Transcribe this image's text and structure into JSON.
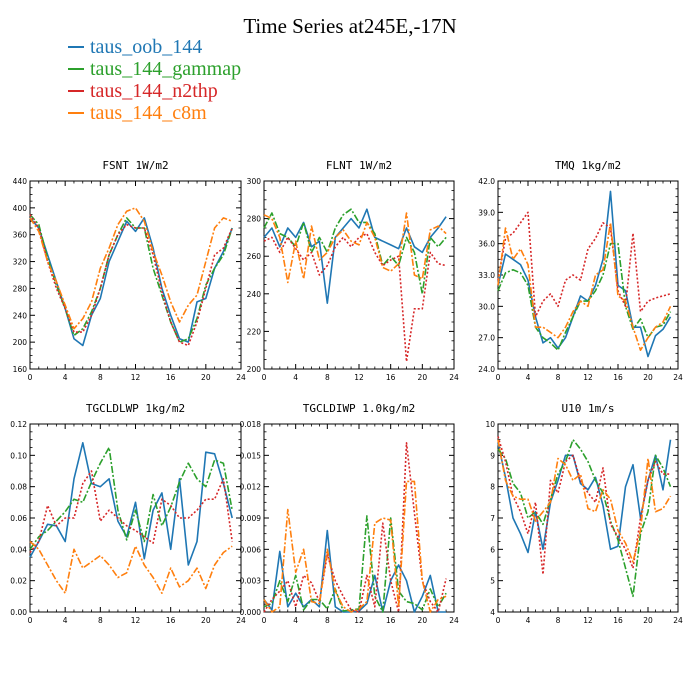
{
  "figure": {
    "title": "Time Series at245E,-17N"
  },
  "legend": [
    {
      "label": "taus_oob_144",
      "color": "#1f77b4"
    },
    {
      "label": "taus_144_gammap",
      "color": "#2ca02c"
    },
    {
      "label": "taus_144_n2thp",
      "color": "#d62728"
    },
    {
      "label": "taus_144_c8m",
      "color": "#ff7f0e"
    }
  ],
  "chart_data": [
    {
      "type": "line",
      "title": "FSNT  1W/m2",
      "xlim": [
        0,
        24
      ],
      "xticks": [
        "0",
        "4",
        "8",
        "12",
        "16",
        "20",
        "24"
      ],
      "ylim": [
        160,
        440
      ],
      "yticks": [
        "160",
        "200",
        "240",
        "280",
        "320",
        "360",
        "400",
        "440"
      ],
      "x": [
        0,
        1,
        2,
        3,
        4,
        5,
        6,
        7,
        8,
        9,
        10,
        11,
        12,
        13,
        14,
        15,
        16,
        17,
        18,
        19,
        20,
        21,
        22,
        23
      ],
      "series": [
        {
          "name": "taus_oob_144",
          "color": "#1f77b4",
          "values": [
            385,
            370,
            330,
            290,
            250,
            205,
            195,
            240,
            265,
            320,
            350,
            380,
            365,
            385,
            340,
            280,
            240,
            205,
            200,
            260,
            265,
            310,
            335,
            370
          ]
        },
        {
          "name": "taus_144_gammap",
          "color": "#2ca02c",
          "values": [
            390,
            375,
            325,
            285,
            250,
            210,
            220,
            245,
            280,
            330,
            360,
            385,
            370,
            370,
            310,
            270,
            230,
            200,
            205,
            235,
            285,
            310,
            330,
            370
          ]
        },
        {
          "name": "taus_144_n2thp",
          "color": "#d62728",
          "values": [
            390,
            370,
            320,
            280,
            250,
            215,
            215,
            240,
            280,
            330,
            360,
            375,
            370,
            370,
            330,
            275,
            230,
            200,
            195,
            230,
            280,
            330,
            340,
            370
          ]
        },
        {
          "name": "taus_144_c8m",
          "color": "#ff7f0e",
          "values": [
            385,
            365,
            320,
            290,
            255,
            220,
            235,
            260,
            310,
            340,
            375,
            395,
            400,
            380,
            335,
            300,
            260,
            230,
            255,
            270,
            320,
            370,
            385,
            380
          ]
        }
      ]
    },
    {
      "type": "line",
      "title": "FLNT  1W/m2",
      "xlim": [
        0,
        24
      ],
      "xticks": [
        "0",
        "4",
        "8",
        "12",
        "16",
        "20",
        "24"
      ],
      "ylim": [
        200,
        300
      ],
      "yticks": [
        "200",
        "220",
        "240",
        "260",
        "280",
        "300"
      ],
      "x": [
        0,
        1,
        2,
        3,
        4,
        5,
        6,
        7,
        8,
        9,
        10,
        11,
        12,
        13,
        14,
        15,
        16,
        17,
        18,
        19,
        20,
        21,
        22,
        23
      ],
      "series": [
        {
          "name": "taus_oob_144",
          "color": "#1f77b4",
          "values": [
            270,
            275,
            265,
            275,
            270,
            278,
            265,
            268,
            235,
            270,
            275,
            280,
            275,
            285,
            270,
            268,
            266,
            264,
            275,
            265,
            262,
            270,
            275,
            281
          ]
        },
        {
          "name": "taus_144_gammap",
          "color": "#2ca02c",
          "values": [
            275,
            283,
            272,
            270,
            265,
            278,
            262,
            270,
            262,
            275,
            282,
            285,
            278,
            278,
            272,
            255,
            260,
            255,
            270,
            262,
            240,
            270,
            265,
            270
          ]
        },
        {
          "name": "taus_144_n2thp",
          "color": "#d62728",
          "values": [
            268,
            270,
            262,
            270,
            264,
            258,
            262,
            250,
            255,
            265,
            270,
            265,
            270,
            272,
            262,
            255,
            258,
            260,
            204,
            232,
            232,
            262,
            256,
            255
          ]
        },
        {
          "name": "taus_144_c8m",
          "color": "#ff7f0e",
          "values": [
            282,
            280,
            270,
            246,
            268,
            248,
            276,
            258,
            262,
            270,
            274,
            268,
            266,
            278,
            270,
            254,
            252,
            256,
            283,
            250,
            248,
            274,
            276,
            272
          ]
        }
      ]
    },
    {
      "type": "line",
      "title": "TMQ  1kg/m2",
      "xlim": [
        0,
        24
      ],
      "xticks": [
        "0",
        "4",
        "8",
        "12",
        "16",
        "20",
        "24"
      ],
      "ylim": [
        24,
        42
      ],
      "yticks": [
        "24.0",
        "27.0",
        "30.0",
        "33.0",
        "36.0",
        "39.0",
        "42.0"
      ],
      "x": [
        0,
        1,
        2,
        3,
        4,
        5,
        6,
        7,
        8,
        9,
        10,
        11,
        12,
        13,
        14,
        15,
        16,
        17,
        18,
        19,
        20,
        21,
        22,
        23
      ],
      "series": [
        {
          "name": "taus_oob_144",
          "color": "#1f77b4",
          "values": [
            32.0,
            35.0,
            34.5,
            34.0,
            32.5,
            29.0,
            26.5,
            27.0,
            26.0,
            27.0,
            29.0,
            31.0,
            30.5,
            32.0,
            34.5,
            41.0,
            32.0,
            31.5,
            28.0,
            28.0,
            25.2,
            27.2,
            27.8,
            29.0
          ]
        },
        {
          "name": "taus_144_gammap",
          "color": "#2ca02c",
          "values": [
            31.5,
            33.2,
            33.5,
            33.2,
            32.0,
            28.0,
            27.0,
            26.5,
            25.8,
            27.5,
            29.0,
            30.5,
            30.5,
            31.5,
            33.0,
            36.0,
            36.0,
            30.0,
            27.8,
            28.8,
            27.0,
            28.0,
            28.2,
            29.5
          ]
        },
        {
          "name": "taus_144_n2thp",
          "color": "#d62728",
          "values": [
            32.5,
            36.5,
            37.0,
            38.0,
            39.0,
            29.0,
            30.5,
            31.2,
            30.0,
            32.5,
            33.0,
            32.5,
            35.5,
            36.5,
            38.0,
            37.5,
            31.5,
            30.0,
            37.0,
            29.5,
            30.5,
            30.8,
            31.0,
            31.2
          ]
        },
        {
          "name": "taus_144_c8m",
          "color": "#ff7f0e",
          "values": [
            32.0,
            37.5,
            34.5,
            35.5,
            34.0,
            28.0,
            28.0,
            27.5,
            27.0,
            28.0,
            29.5,
            30.5,
            30.0,
            33.0,
            33.5,
            38.0,
            31.0,
            30.5,
            28.0,
            25.8,
            27.0,
            28.0,
            28.5,
            30.0
          ]
        }
      ]
    },
    {
      "type": "line",
      "title": "TGCLDLWP  1kg/m2",
      "xlim": [
        0,
        24
      ],
      "xticks": [
        "0",
        "4",
        "8",
        "12",
        "16",
        "20",
        "24"
      ],
      "ylim": [
        0,
        0.12
      ],
      "yticks": [
        "0.00",
        "0.02",
        "0.04",
        "0.06",
        "0.08",
        "0.10",
        "0.12"
      ],
      "x": [
        0,
        1,
        2,
        3,
        4,
        5,
        6,
        7,
        8,
        9,
        10,
        11,
        12,
        13,
        14,
        15,
        16,
        17,
        18,
        19,
        20,
        21,
        22,
        23
      ],
      "series": [
        {
          "name": "taus_oob_144",
          "color": "#1f77b4",
          "values": [
            0.035,
            0.045,
            0.056,
            0.055,
            0.045,
            0.085,
            0.108,
            0.082,
            0.08,
            0.085,
            0.058,
            0.048,
            0.07,
            0.034,
            0.065,
            0.076,
            0.04,
            0.085,
            0.03,
            0.045,
            0.102,
            0.101,
            0.082,
            0.06
          ]
        },
        {
          "name": "taus_144_gammap",
          "color": "#2ca02c",
          "values": [
            0.04,
            0.048,
            0.052,
            0.058,
            0.064,
            0.072,
            0.07,
            0.083,
            0.095,
            0.105,
            0.065,
            0.046,
            0.065,
            0.045,
            0.075,
            0.055,
            0.067,
            0.083,
            0.095,
            0.085,
            0.08,
            0.097,
            0.095,
            0.065
          ]
        },
        {
          "name": "taus_144_n2thp",
          "color": "#d62728",
          "values": [
            0.038,
            0.045,
            0.068,
            0.055,
            0.06,
            0.06,
            0.082,
            0.09,
            0.058,
            0.065,
            0.06,
            0.055,
            0.052,
            0.048,
            0.044,
            0.072,
            0.068,
            0.06,
            0.06,
            0.065,
            0.072,
            0.072,
            0.085,
            0.045
          ]
        },
        {
          "name": "taus_144_c8m",
          "color": "#ff7f0e",
          "values": [
            0.045,
            0.04,
            0.03,
            0.02,
            0.012,
            0.04,
            0.028,
            0.032,
            0.036,
            0.03,
            0.022,
            0.025,
            0.042,
            0.03,
            0.022,
            0.012,
            0.028,
            0.016,
            0.02,
            0.028,
            0.015,
            0.03,
            0.038,
            0.042
          ]
        }
      ]
    },
    {
      "type": "line",
      "title": "TGCLDIWP  1.0kg/m2",
      "xlim": [
        0,
        24
      ],
      "xticks": [
        "0",
        "4",
        "8",
        "12",
        "16",
        "20",
        "24"
      ],
      "ylim": [
        0,
        0.018
      ],
      "yticks": [
        "0.000",
        "0.003",
        "0.006",
        "0.009",
        "0.012",
        "0.015",
        "0.018"
      ],
      "x": [
        0,
        1,
        2,
        3,
        4,
        5,
        6,
        7,
        8,
        9,
        10,
        11,
        12,
        13,
        14,
        15,
        16,
        17,
        18,
        19,
        20,
        21,
        22,
        23
      ],
      "series": [
        {
          "name": "taus_oob_144",
          "color": "#1f77b4",
          "values": [
            0.0012,
            0.0002,
            0.0058,
            0.0005,
            0.0018,
            0.0005,
            0.0012,
            0.0005,
            0.0078,
            0.0005,
            0.0,
            0.0,
            0.0001,
            0.0008,
            0.0035,
            0.0,
            0.003,
            0.0045,
            0.003,
            0.0,
            0.0015,
            0.0035,
            0.0,
            0.0
          ]
        },
        {
          "name": "taus_144_gammap",
          "color": "#2ca02c",
          "values": [
            0.0005,
            0.0008,
            0.003,
            0.001,
            0.0035,
            0.0002,
            0.0012,
            0.0012,
            0.0003,
            0.0022,
            0.0001,
            0.0002,
            0.0003,
            0.0092,
            0.0015,
            0.0,
            0.009,
            0.002,
            0.001,
            0.0008,
            0.0002,
            0.0022,
            0.0005,
            0.0018
          ]
        },
        {
          "name": "taus_144_n2thp",
          "color": "#d62728",
          "values": [
            0.0,
            0.0012,
            0.002,
            0.003,
            0.0005,
            0.0035,
            0.0028,
            0.001,
            0.0055,
            0.003,
            0.0015,
            0.0002,
            0.0,
            0.0035,
            0.0005,
            0.0085,
            0.003,
            0.0,
            0.0162,
            0.0095,
            0.003,
            0.001,
            0.0,
            0.0032
          ]
        },
        {
          "name": "taus_144_c8m",
          "color": "#ff7f0e",
          "values": [
            0.0012,
            0.0,
            0.0005,
            0.0098,
            0.0038,
            0.006,
            0.001,
            0.0008,
            0.006,
            0.002,
            0.0005,
            0.0,
            0.0003,
            0.001,
            0.0085,
            0.009,
            0.0088,
            0.0005,
            0.0125,
            0.0125,
            0.003,
            0.0,
            0.0012,
            0.0015
          ]
        }
      ]
    },
    {
      "type": "line",
      "title": "U10  1m/s",
      "xlim": [
        0,
        24
      ],
      "xticks": [
        "0",
        "4",
        "8",
        "12",
        "16",
        "20",
        "24"
      ],
      "ylim": [
        4,
        10
      ],
      "yticks": [
        "4",
        "5",
        "6",
        "7",
        "8",
        "9",
        "10"
      ],
      "x": [
        0,
        1,
        2,
        3,
        4,
        5,
        6,
        7,
        8,
        9,
        10,
        11,
        12,
        13,
        14,
        15,
        16,
        17,
        18,
        19,
        20,
        21,
        22,
        23
      ],
      "series": [
        {
          "name": "taus_oob_144",
          "color": "#1f77b4",
          "values": [
            9.4,
            8.3,
            7.0,
            6.5,
            5.9,
            7.2,
            6.0,
            7.5,
            8.2,
            9.0,
            9.0,
            8.1,
            7.9,
            8.3,
            7.4,
            6.0,
            6.1,
            8.0,
            8.7,
            7.0,
            8.2,
            9.0,
            7.9,
            9.5
          ]
        },
        {
          "name": "taus_144_gammap",
          "color": "#2ca02c",
          "values": [
            9.2,
            8.9,
            8.1,
            7.8,
            7.0,
            7.2,
            6.8,
            7.6,
            8.4,
            8.8,
            9.5,
            9.2,
            8.8,
            8.2,
            7.8,
            6.9,
            6.3,
            5.4,
            4.5,
            6.5,
            7.2,
            9.0,
            8.6,
            8.0
          ]
        },
        {
          "name": "taus_144_n2thp",
          "color": "#d62728",
          "values": [
            9.6,
            8.8,
            7.7,
            7.2,
            6.5,
            7.5,
            5.2,
            8.2,
            7.8,
            8.8,
            9.0,
            8.2,
            7.8,
            7.5,
            8.6,
            6.8,
            6.4,
            6.0,
            5.4,
            7.0,
            8.2,
            8.8,
            8.4,
            8.4
          ]
        },
        {
          "name": "taus_144_c8m",
          "color": "#ff7f0e",
          "values": [
            9.5,
            8.2,
            7.7,
            7.6,
            7.6,
            6.9,
            7.2,
            7.5,
            8.9,
            8.7,
            8.2,
            8.4,
            7.3,
            7.2,
            7.9,
            7.6,
            6.6,
            6.2,
            5.6,
            6.6,
            8.9,
            7.2,
            7.3,
            7.7
          ]
        }
      ]
    }
  ]
}
